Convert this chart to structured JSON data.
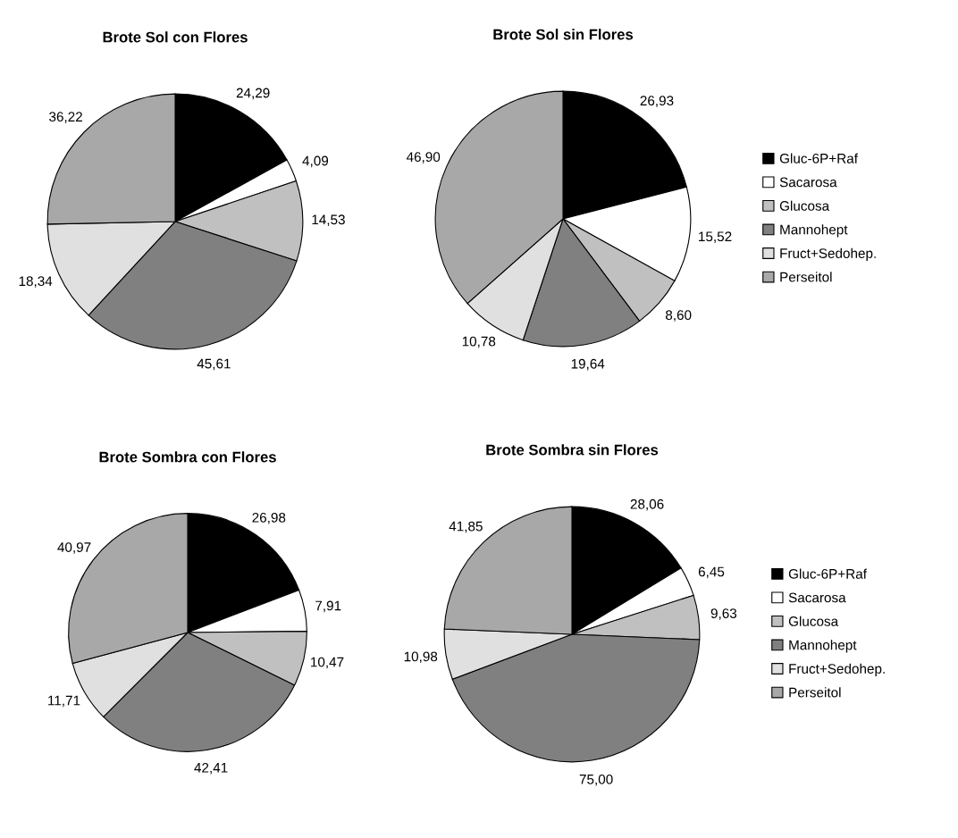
{
  "chart_data": [
    {
      "type": "pie",
      "title": "Brote Sol con Flores",
      "categories": [
        null,
        null,
        null,
        null,
        null,
        null
      ],
      "values": [
        24.29,
        4.09,
        14.53,
        45.61,
        18.34,
        36.22
      ],
      "value_labels": [
        "24,29",
        "4,09",
        "14,53",
        "45,61",
        "18,34",
        "36,22"
      ],
      "colors": [
        "#000000",
        "#ffffff",
        "#c0c0c0",
        "#808080",
        "#e0e0e0",
        "#a8a8a8"
      ],
      "legend": false
    },
    {
      "type": "pie",
      "title": "Brote Sol sin Flores",
      "categories": [
        "Gluc-6P+Raf",
        "Sacarosa",
        "Glucosa",
        "Mannohept",
        "Fruct+Sedohep.",
        "Perseitol"
      ],
      "values": [
        26.93,
        15.52,
        8.6,
        19.64,
        10.78,
        46.9
      ],
      "value_labels": [
        "26,93",
        "15,52",
        "8,60",
        "19,64",
        "10,78",
        "46,90"
      ],
      "colors": [
        "#000000",
        "#ffffff",
        "#c0c0c0",
        "#808080",
        "#e0e0e0",
        "#a8a8a8"
      ],
      "legend": "right"
    },
    {
      "type": "pie",
      "title": "Brote Sombra con Flores",
      "categories": [
        null,
        null,
        null,
        null,
        null,
        null
      ],
      "values": [
        26.98,
        7.91,
        10.47,
        42.41,
        11.71,
        40.97
      ],
      "value_labels": [
        "26,98",
        "7,91",
        "10,47",
        "42,41",
        "11,71",
        "40,97"
      ],
      "colors": [
        "#000000",
        "#ffffff",
        "#c0c0c0",
        "#808080",
        "#e0e0e0",
        "#a8a8a8"
      ],
      "legend": false
    },
    {
      "type": "pie",
      "title": "Brote Sombra sin Flores",
      "categories": [
        "Gluc-6P+Raf",
        "Sacarosa",
        "Glucosa",
        "Mannohept",
        "Fruct+Sedohep.",
        "Perseitol"
      ],
      "values": [
        28.06,
        6.45,
        9.63,
        75.0,
        10.98,
        41.85
      ],
      "value_labels": [
        "28,06",
        "6,45",
        "9,63",
        "75,00",
        "10,98",
        "41,85"
      ],
      "colors": [
        "#000000",
        "#ffffff",
        "#c0c0c0",
        "#808080",
        "#e0e0e0",
        "#a8a8a8"
      ],
      "legend": "right"
    }
  ]
}
